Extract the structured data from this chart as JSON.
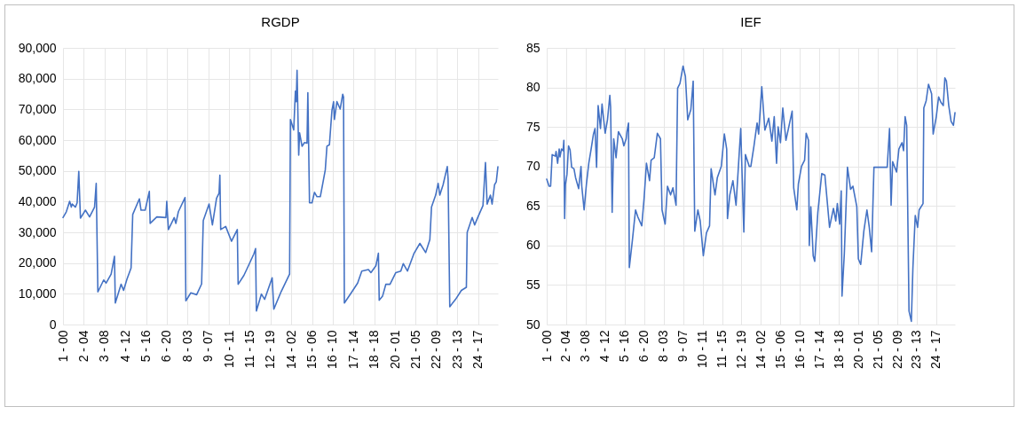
{
  "chart_data": [
    {
      "type": "line",
      "title": "RGDP",
      "grid": true,
      "ylim": [
        0,
        90000
      ],
      "yticks": [
        {
          "value": 0,
          "label": "0"
        },
        {
          "value": 10000,
          "label": "10,000"
        },
        {
          "value": 20000,
          "label": "20,000"
        },
        {
          "value": 30000,
          "label": "30,000"
        },
        {
          "value": 40000,
          "label": "40,000"
        },
        {
          "value": 50000,
          "label": "50,000"
        },
        {
          "value": 60000,
          "label": "60,000"
        },
        {
          "value": 70000,
          "label": "70,000"
        },
        {
          "value": 80000,
          "label": "80,000"
        },
        {
          "value": 90000,
          "label": "90,000"
        }
      ],
      "categories": [
        "1 - 00",
        null,
        null,
        null,
        null,
        null,
        null,
        null,
        null,
        null,
        null,
        null,
        null,
        null,
        null,
        null,
        null,
        null,
        null,
        null,
        null,
        null,
        null,
        null,
        null,
        "2 - 04",
        null,
        null,
        null,
        null,
        null,
        null,
        null,
        null,
        null,
        null,
        null,
        null,
        null,
        null,
        null,
        null,
        null,
        null,
        null,
        null,
        null,
        null,
        null,
        null,
        "3 - 08",
        null,
        null,
        null,
        null,
        null,
        null,
        null,
        null,
        null,
        null,
        null,
        null,
        null,
        null,
        null,
        null,
        null,
        null,
        null,
        null,
        null,
        null,
        null,
        null,
        "4 - 12",
        null,
        null,
        null,
        null,
        null,
        null,
        null,
        null,
        null,
        null,
        null,
        null,
        null,
        null,
        null,
        null,
        null,
        null,
        null,
        null,
        null,
        null,
        null,
        null,
        "5 - 16",
        null,
        null,
        null,
        null,
        null,
        null,
        null,
        null,
        null,
        null,
        null,
        null,
        null,
        null,
        null,
        null,
        null,
        null,
        null,
        null,
        null,
        null,
        null,
        null,
        "6 - 20",
        null,
        null,
        null,
        null,
        null,
        null,
        null,
        null,
        null,
        null,
        null,
        null,
        null,
        null,
        null,
        null,
        null,
        null,
        null,
        null,
        null,
        null,
        null,
        null,
        "8 - 03",
        null,
        null,
        null,
        null,
        null,
        null,
        null,
        null,
        null,
        null,
        null,
        null,
        null,
        null,
        null,
        null,
        null,
        null,
        null,
        null,
        null,
        null,
        null,
        null,
        "9 - 07",
        null,
        null,
        null,
        null,
        null,
        null,
        null,
        null,
        null,
        null,
        null,
        null,
        null,
        null,
        null,
        null,
        null,
        null,
        null,
        null,
        null,
        null,
        null,
        null,
        "10 - 11",
        null,
        null,
        null,
        null,
        null,
        null,
        null,
        null,
        null,
        null,
        null,
        null,
        null,
        null,
        null,
        null,
        null,
        null,
        null,
        null,
        null,
        null,
        null,
        null,
        "11 - 15",
        null,
        null,
        null,
        null,
        null,
        null,
        null,
        null,
        null,
        null,
        null,
        null,
        null,
        null,
        null,
        null,
        null,
        null,
        null,
        null,
        null,
        null,
        null,
        null,
        "12 - 19",
        null,
        null,
        null,
        null,
        null,
        null,
        null,
        null,
        null,
        null,
        null,
        null,
        null,
        null,
        null,
        null,
        null,
        null,
        null,
        null,
        null,
        null,
        null,
        null,
        "14 - 02",
        null,
        null,
        null,
        null,
        null,
        null,
        null,
        null,
        null,
        null,
        null,
        null,
        null,
        null,
        null,
        null,
        null,
        null,
        null,
        null,
        null,
        null,
        null,
        null,
        "15 - 06",
        null,
        null,
        null,
        null,
        null,
        null,
        null,
        null,
        null,
        null,
        null,
        null,
        null,
        null,
        null,
        null,
        null,
        null,
        null,
        null,
        null,
        null,
        null,
        null,
        "16 - 10",
        null,
        null,
        null,
        null,
        null,
        null,
        null,
        null,
        null,
        null,
        null,
        null,
        null,
        null,
        null,
        null,
        null,
        null,
        null,
        null,
        null,
        null,
        null,
        null,
        "17 - 14",
        null,
        null,
        null,
        null,
        null,
        null,
        null,
        null,
        null,
        null,
        null,
        null,
        null,
        null,
        null,
        null,
        null,
        null,
        null,
        null,
        null,
        null,
        null,
        null,
        "18 - 18",
        null,
        null,
        null,
        null,
        null,
        null,
        null,
        null,
        null,
        null,
        null,
        null,
        null,
        null,
        null,
        null,
        null,
        null,
        null,
        null,
        null,
        null,
        null,
        null,
        "20 - 01",
        null,
        null,
        null,
        null,
        null,
        null,
        null,
        null,
        null,
        null,
        null,
        null,
        null,
        null,
        null,
        null,
        null,
        null,
        null,
        null,
        null,
        null,
        null,
        null,
        "21 - 05",
        null,
        null,
        null,
        null,
        null,
        null,
        null,
        null,
        null,
        null,
        null,
        null,
        null,
        null,
        null,
        null,
        null,
        null,
        null,
        null,
        null,
        null,
        null,
        null,
        "22 - 09",
        null,
        null,
        null,
        null,
        null,
        null,
        null,
        null,
        null,
        null,
        null,
        null,
        null,
        null,
        null,
        null,
        null,
        null,
        null,
        null,
        null,
        null,
        null,
        null,
        "23 - 13",
        null,
        null,
        null,
        null,
        null,
        null,
        null,
        null,
        null,
        null,
        null,
        null,
        null,
        null,
        null,
        null,
        null,
        null,
        null,
        null,
        null,
        null,
        null,
        null,
        "24 - 17",
        null,
        null,
        null,
        null,
        null,
        null,
        null,
        null,
        null,
        null,
        null,
        null,
        null,
        null,
        null,
        null,
        null,
        null,
        null,
        null,
        null,
        null,
        null,
        null
      ],
      "series": [
        {
          "color": "#4472c4",
          "values": [
            34800,
            null,
            null,
            null,
            36700,
            null,
            null,
            null,
            40100,
            null,
            38200,
            39200,
            null,
            null,
            null,
            38200,
            null,
            39600,
            null,
            49800,
            null,
            34600,
            null,
            null,
            null,
            null,
            null,
            37200,
            null,
            null,
            null,
            null,
            35000,
            null,
            null,
            null,
            null,
            null,
            38200,
            null,
            45900,
            null,
            10600,
            null,
            null,
            null,
            null,
            null,
            null,
            14500,
            null,
            null,
            13500,
            null,
            null,
            null,
            null,
            null,
            16400,
            null,
            null,
            null,
            22200,
            7000,
            null,
            null,
            null,
            null,
            null,
            null,
            13100,
            null,
            null,
            11100,
            null,
            null,
            null,
            14700,
            null,
            null,
            null,
            null,
            18400,
            null,
            35800,
            null,
            null,
            null,
            null,
            null,
            null,
            null,
            40900,
            null,
            37200,
            null,
            null,
            null,
            null,
            37200,
            null,
            null,
            null,
            null,
            43300,
            32900,
            null,
            null,
            null,
            null,
            null,
            null,
            null,
            35000,
            null,
            null,
            null,
            null,
            null,
            null,
            null,
            null,
            null,
            null,
            34800,
            40100,
            null,
            30900,
            null,
            null,
            null,
            null,
            null,
            null,
            34800,
            null,
            32900,
            null,
            null,
            36700,
            null,
            null,
            null,
            null,
            null,
            null,
            null,
            41300,
            7700,
            null,
            null,
            null,
            null,
            null,
            10300,
            null,
            null,
            null,
            null,
            null,
            null,
            9700,
            null,
            null,
            null,
            null,
            null,
            13200,
            null,
            33800,
            null,
            null,
            null,
            null,
            null,
            null,
            39200,
            null,
            null,
            null,
            32400,
            null,
            null,
            null,
            null,
            41100,
            null,
            null,
            42700,
            48600,
            30900,
            null,
            null,
            null,
            null,
            null,
            31900,
            null,
            null,
            null,
            null,
            null,
            null,
            27100,
            null,
            null,
            null,
            null,
            null,
            null,
            30900,
            13100,
            null,
            null,
            null,
            null,
            null,
            null,
            16000,
            null,
            null,
            null,
            null,
            18900,
            null,
            null,
            null,
            null,
            null,
            null,
            23000,
            null,
            24700,
            4400,
            null,
            null,
            null,
            null,
            null,
            9900,
            null,
            null,
            null,
            8200,
            null,
            null,
            null,
            null,
            null,
            null,
            null,
            null,
            15200,
            null,
            5000,
            null,
            null,
            null,
            null,
            null,
            null,
            null,
            null,
            10800,
            null,
            null,
            null,
            null,
            null,
            null,
            null,
            null,
            null,
            16400,
            66700,
            null,
            null,
            null,
            63300,
            null,
            75900,
            72500,
            82700,
            null,
            55100,
            62400,
            null,
            null,
            58000,
            null,
            null,
            59200,
            null,
            null,
            59000,
            75400,
            null,
            39600,
            null,
            null,
            39600,
            null,
            null,
            43000,
            null,
            null,
            41600,
            null,
            null,
            null,
            41600,
            null,
            null,
            45900,
            null,
            null,
            50300,
            null,
            58000,
            null,
            null,
            58500,
            null,
            null,
            69600,
            null,
            72500,
            66700,
            null,
            null,
            72500,
            null,
            null,
            null,
            70100,
            null,
            null,
            74900,
            74000,
            7000,
            null,
            null,
            null,
            null,
            null,
            null,
            null,
            null,
            10600,
            null,
            null,
            null,
            null,
            null,
            null,
            13500,
            null,
            null,
            null,
            null,
            17400,
            null,
            null,
            null,
            null,
            null,
            null,
            null,
            17900,
            null,
            null,
            16900,
            null,
            null,
            null,
            null,
            null,
            19100,
            null,
            null,
            23200,
            7900,
            null,
            null,
            null,
            9200,
            null,
            null,
            null,
            13100,
            null,
            null,
            null,
            null,
            13100,
            null,
            null,
            null,
            null,
            null,
            null,
            16900,
            null,
            null,
            null,
            null,
            null,
            17400,
            null,
            null,
            19800,
            null,
            null,
            null,
            null,
            17400,
            null,
            null,
            null,
            null,
            null,
            null,
            null,
            23200,
            null,
            null,
            null,
            null,
            null,
            null,
            26400,
            null,
            null,
            null,
            null,
            null,
            null,
            23400,
            null,
            null,
            null,
            null,
            27600,
            null,
            38200,
            null,
            null,
            null,
            null,
            42100,
            null,
            null,
            45900,
            null,
            42100,
            null,
            null,
            null,
            45500,
            null,
            null,
            null,
            null,
            51400,
            47400,
            null,
            5800,
            null,
            null,
            null,
            null,
            null,
            null,
            8200,
            null,
            null,
            null,
            null,
            null,
            null,
            11100,
            null,
            null,
            null,
            null,
            null,
            12100,
            30000,
            null,
            null,
            null,
            null,
            null,
            34800,
            null,
            null,
            32400,
            null,
            null,
            null,
            35000,
            null,
            null,
            null,
            null,
            null,
            38700,
            null,
            null,
            52700,
            null,
            39200,
            null,
            null,
            null,
            42100,
            null,
            39200,
            null,
            null,
            45500,
            null,
            46400,
            null,
            51300
          ]
        }
      ]
    },
    {
      "type": "line",
      "title": "IEF",
      "grid": true,
      "ylim": [
        50,
        85
      ],
      "yticks": [
        50,
        55,
        60,
        65,
        70,
        75,
        80,
        85
      ],
      "categories": [
        "1 - 00",
        null,
        null,
        null,
        null,
        null,
        null,
        null,
        null,
        null,
        null,
        null,
        null,
        null,
        null,
        null,
        null,
        null,
        null,
        null,
        null,
        null,
        null,
        null,
        null,
        "2 - 04",
        null,
        null,
        null,
        null,
        null,
        null,
        null,
        null,
        null,
        null,
        null,
        null,
        null,
        null,
        null,
        null,
        null,
        null,
        null,
        null,
        null,
        null,
        null,
        null,
        "3 - 08",
        null,
        null,
        null,
        null,
        null,
        null,
        null,
        null,
        null,
        null,
        null,
        null,
        null,
        null,
        null,
        null,
        null,
        null,
        null,
        null,
        null,
        null,
        null,
        null,
        "4 - 12",
        null,
        null,
        null,
        null,
        null,
        null,
        null,
        null,
        null,
        null,
        null,
        null,
        null,
        null,
        null,
        null,
        null,
        null,
        null,
        null,
        null,
        null,
        null,
        null,
        "5 - 16",
        null,
        null,
        null,
        null,
        null,
        null,
        null,
        null,
        null,
        null,
        null,
        null,
        null,
        null,
        null,
        null,
        null,
        null,
        null,
        null,
        null,
        null,
        null,
        null,
        "6 - 20",
        null,
        null,
        null,
        null,
        null,
        null,
        null,
        null,
        null,
        null,
        null,
        null,
        null,
        null,
        null,
        null,
        null,
        null,
        null,
        null,
        null,
        null,
        null,
        null,
        "8 - 03",
        null,
        null,
        null,
        null,
        null,
        null,
        null,
        null,
        null,
        null,
        null,
        null,
        null,
        null,
        null,
        null,
        null,
        null,
        null,
        null,
        null,
        null,
        null,
        null,
        "9 - 07",
        null,
        null,
        null,
        null,
        null,
        null,
        null,
        null,
        null,
        null,
        null,
        null,
        null,
        null,
        null,
        null,
        null,
        null,
        null,
        null,
        null,
        null,
        null,
        null,
        "10 - 11",
        null,
        null,
        null,
        null,
        null,
        null,
        null,
        null,
        null,
        null,
        null,
        null,
        null,
        null,
        null,
        null,
        null,
        null,
        null,
        null,
        null,
        null,
        null,
        null,
        "11 - 15",
        null,
        null,
        null,
        null,
        null,
        null,
        null,
        null,
        null,
        null,
        null,
        null,
        null,
        null,
        null,
        null,
        null,
        null,
        null,
        null,
        null,
        null,
        null,
        null,
        "12 - 19",
        null,
        null,
        null,
        null,
        null,
        null,
        null,
        null,
        null,
        null,
        null,
        null,
        null,
        null,
        null,
        null,
        null,
        null,
        null,
        null,
        null,
        null,
        null,
        null,
        "14 - 02",
        null,
        null,
        null,
        null,
        null,
        null,
        null,
        null,
        null,
        null,
        null,
        null,
        null,
        null,
        null,
        null,
        null,
        null,
        null,
        null,
        null,
        null,
        null,
        null,
        "15 - 06",
        null,
        null,
        null,
        null,
        null,
        null,
        null,
        null,
        null,
        null,
        null,
        null,
        null,
        null,
        null,
        null,
        null,
        null,
        null,
        null,
        null,
        null,
        null,
        null,
        "16 - 10",
        null,
        null,
        null,
        null,
        null,
        null,
        null,
        null,
        null,
        null,
        null,
        null,
        null,
        null,
        null,
        null,
        null,
        null,
        null,
        null,
        null,
        null,
        null,
        null,
        "17 - 14",
        null,
        null,
        null,
        null,
        null,
        null,
        null,
        null,
        null,
        null,
        null,
        null,
        null,
        null,
        null,
        null,
        null,
        null,
        null,
        null,
        null,
        null,
        null,
        null,
        "18 - 18",
        null,
        null,
        null,
        null,
        null,
        null,
        null,
        null,
        null,
        null,
        null,
        null,
        null,
        null,
        null,
        null,
        null,
        null,
        null,
        null,
        null,
        null,
        null,
        null,
        "20 - 01",
        null,
        null,
        null,
        null,
        null,
        null,
        null,
        null,
        null,
        null,
        null,
        null,
        null,
        null,
        null,
        null,
        null,
        null,
        null,
        null,
        null,
        null,
        null,
        null,
        "21 - 05",
        null,
        null,
        null,
        null,
        null,
        null,
        null,
        null,
        null,
        null,
        null,
        null,
        null,
        null,
        null,
        null,
        null,
        null,
        null,
        null,
        null,
        null,
        null,
        null,
        "22 - 09",
        null,
        null,
        null,
        null,
        null,
        null,
        null,
        null,
        null,
        null,
        null,
        null,
        null,
        null,
        null,
        null,
        null,
        null,
        null,
        null,
        null,
        null,
        null,
        null,
        "23 - 13",
        null,
        null,
        null,
        null,
        null,
        null,
        null,
        null,
        null,
        null,
        null,
        null,
        null,
        null,
        null,
        null,
        null,
        null,
        null,
        null,
        null,
        null,
        null,
        null,
        "24 - 17",
        null,
        null,
        null,
        null,
        null,
        null,
        null,
        null,
        null,
        null,
        null,
        null,
        null,
        null,
        null,
        null,
        null,
        null,
        null,
        null,
        null,
        null,
        null,
        null
      ],
      "series": [
        {
          "color": "#4472c4",
          "values": [
            68.4,
            null,
            null,
            67.5,
            null,
            67.5,
            null,
            71.5,
            null,
            null,
            null,
            71.3,
            71.9,
            null,
            70.4,
            null,
            72.2,
            71.2,
            null,
            72.2,
            null,
            72.0,
            73.3,
            63.4,
            67.7,
            null,
            69.0,
            null,
            72.6,
            null,
            72.1,
            null,
            69.9,
            null,
            null,
            69.7,
            null,
            68.6,
            null,
            null,
            null,
            67.2,
            null,
            null,
            70.0,
            67.5,
            null,
            null,
            64.5,
            null,
            null,
            67.8,
            null,
            null,
            70.4,
            null,
            null,
            72.2,
            null,
            null,
            74.1,
            null,
            74.8,
            null,
            69.9,
            null,
            77.7,
            null,
            null,
            74.8,
            null,
            77.9,
            null,
            null,
            null,
            74.2,
            null,
            null,
            75.9,
            null,
            null,
            79.0,
            77.5,
            null,
            64.2,
            null,
            73.5,
            null,
            null,
            71.1,
            null,
            null,
            74.4,
            null,
            null,
            null,
            null,
            73.5,
            null,
            72.6,
            null,
            null,
            73.5,
            74.4,
            null,
            75.5,
            57.2,
            null,
            null,
            null,
            60.7,
            null,
            null,
            null,
            64.5,
            null,
            null,
            63.6,
            null,
            null,
            null,
            null,
            62.5,
            null,
            null,
            66.0,
            null,
            null,
            70.4,
            null,
            null,
            null,
            68.2,
            null,
            70.8,
            null,
            null,
            null,
            71.1,
            null,
            null,
            null,
            74.2,
            null,
            null,
            null,
            73.5,
            null,
            64.5,
            null,
            null,
            null,
            62.7,
            null,
            null,
            67.5,
            null,
            null,
            null,
            66.4,
            null,
            null,
            67.3,
            null,
            null,
            null,
            65.1,
            null,
            79.9,
            null,
            null,
            80.5,
            null,
            null,
            null,
            82.7,
            null,
            null,
            81.4,
            null,
            null,
            75.9,
            null,
            null,
            null,
            77.2,
            null,
            null,
            80.8,
            null,
            61.8,
            null,
            null,
            null,
            64.5,
            null,
            null,
            63.1,
            null,
            null,
            null,
            58.7,
            null,
            null,
            null,
            61.6,
            null,
            null,
            null,
            62.5,
            null,
            69.7,
            null,
            null,
            null,
            null,
            66.4,
            null,
            null,
            68.6,
            null,
            null,
            null,
            null,
            70.0,
            null,
            null,
            null,
            74.1,
            null,
            null,
            72.2,
            63.4,
            null,
            null,
            66.4,
            null,
            null,
            null,
            68.2,
            null,
            null,
            null,
            65.1,
            null,
            null,
            null,
            null,
            null,
            74.8,
            null,
            null,
            null,
            61.7,
            null,
            71.5,
            null,
            null,
            null,
            null,
            70.0,
            null,
            70.0,
            null,
            null,
            null,
            72.6,
            null,
            null,
            null,
            75.5,
            null,
            74.1,
            null,
            null,
            null,
            80.1,
            null,
            null,
            null,
            74.6,
            null,
            null,
            null,
            null,
            76.1,
            null,
            null,
            null,
            73.2,
            null,
            null,
            76.3,
            null,
            null,
            70.4,
            null,
            75.0,
            null,
            null,
            73.0,
            null,
            null,
            77.4,
            null,
            null,
            null,
            73.3,
            null,
            null,
            null,
            null,
            null,
            null,
            null,
            77.0,
            null,
            67.3,
            null,
            null,
            null,
            64.5,
            null,
            67.8,
            null,
            null,
            null,
            70.0,
            null,
            null,
            null,
            70.8,
            null,
            74.2,
            null,
            null,
            73.3,
            60.0,
            null,
            64.9,
            null,
            null,
            58.7,
            null,
            58.0,
            null,
            null,
            null,
            64.2,
            null,
            null,
            null,
            null,
            69.1,
            null,
            null,
            null,
            68.9,
            null,
            null,
            null,
            null,
            null,
            62.3,
            null,
            null,
            null,
            null,
            64.7,
            null,
            null,
            63.1,
            null,
            65.3,
            null,
            null,
            62.7,
            null,
            66.9,
            53.6,
            null,
            null,
            59.0,
            null,
            null,
            null,
            69.9,
            null,
            null,
            null,
            67.1,
            null,
            null,
            67.5,
            null,
            null,
            null,
            null,
            64.9,
            null,
            58.3,
            null,
            null,
            57.6,
            null,
            null,
            null,
            61.8,
            null,
            null,
            null,
            64.5,
            null,
            null,
            62.3,
            null,
            null,
            59.2,
            null,
            null,
            69.9,
            null,
            null,
            null,
            null,
            null,
            null,
            null,
            null,
            null,
            null,
            null,
            null,
            null,
            null,
            null,
            null,
            69.9,
            null,
            null,
            74.8,
            null,
            65.1,
            null,
            70.6,
            null,
            null,
            null,
            null,
            69.3,
            null,
            null,
            72.2,
            null,
            null,
            null,
            73.0,
            null,
            72.0,
            null,
            76.3,
            null,
            75.2,
            null,
            null,
            51.7,
            null,
            null,
            50.4,
            null,
            57.2,
            null,
            null,
            63.8,
            null,
            null,
            62.3,
            null,
            64.5,
            null,
            null,
            null,
            null,
            65.3,
            77.4,
            null,
            null,
            78.3,
            null,
            null,
            80.4,
            null,
            null,
            null,
            79.2,
            null,
            74.1,
            null,
            null,
            null,
            76.3,
            null,
            null,
            78.8,
            null,
            null,
            78.1,
            null,
            null,
            77.7,
            null,
            81.2,
            null,
            80.8,
            null,
            null,
            77.7,
            null,
            null,
            75.7,
            null,
            null,
            75.2,
            null,
            76.8
          ]
        }
      ]
    }
  ]
}
